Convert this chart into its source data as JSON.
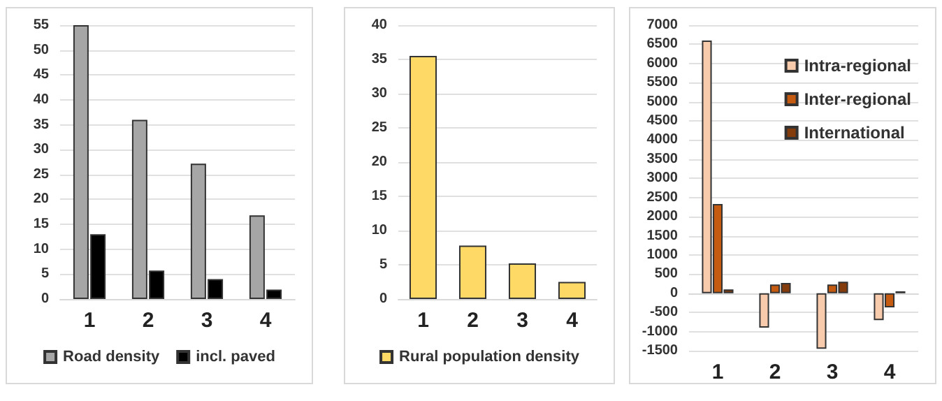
{
  "chart_data": [
    {
      "type": "bar",
      "categories": [
        "1",
        "2",
        "3",
        "4"
      ],
      "series": [
        {
          "name": "Road density",
          "color": "#a6a6a6",
          "values": [
            55,
            36,
            27.2,
            16.8
          ]
        },
        {
          "name": "incl. paved",
          "color": "#000000",
          "values": [
            13,
            5.7,
            4,
            1.9
          ]
        }
      ],
      "ylim": [
        0,
        55
      ],
      "yticks": [
        0,
        5,
        10,
        15,
        20,
        25,
        30,
        35,
        40,
        45,
        50,
        55
      ],
      "grid": "y",
      "legend": "bottom"
    },
    {
      "type": "bar",
      "categories": [
        "1",
        "2",
        "3",
        "4"
      ],
      "series": [
        {
          "name": "Rural population density",
          "color": "#ffd966",
          "values": [
            35.5,
            7.8,
            5.2,
            2.5
          ]
        }
      ],
      "ylim": [
        0,
        40
      ],
      "yticks": [
        0,
        5,
        10,
        15,
        20,
        25,
        30,
        35,
        40
      ],
      "grid": "y",
      "legend": "bottom"
    },
    {
      "type": "bar",
      "categories": [
        "1",
        "2",
        "3",
        "4"
      ],
      "series": [
        {
          "name": "Intra-regional",
          "color": "#f8cbad",
          "values": [
            6600,
            -900,
            -1450,
            -700
          ]
        },
        {
          "name": "Inter-regional",
          "color": "#c55a11",
          "values": [
            2330,
            230,
            230,
            -370
          ]
        },
        {
          "name": "International",
          "color": "#843c0c",
          "values": [
            100,
            270,
            300,
            50
          ]
        }
      ],
      "ylim": [
        -1500,
        7000
      ],
      "yticks": [
        -1500,
        -1000,
        -500,
        0,
        500,
        1000,
        1500,
        2000,
        2500,
        3000,
        3500,
        4000,
        4500,
        5000,
        5500,
        6000,
        6500,
        7000
      ],
      "grid": "y",
      "legend": "top right"
    }
  ]
}
